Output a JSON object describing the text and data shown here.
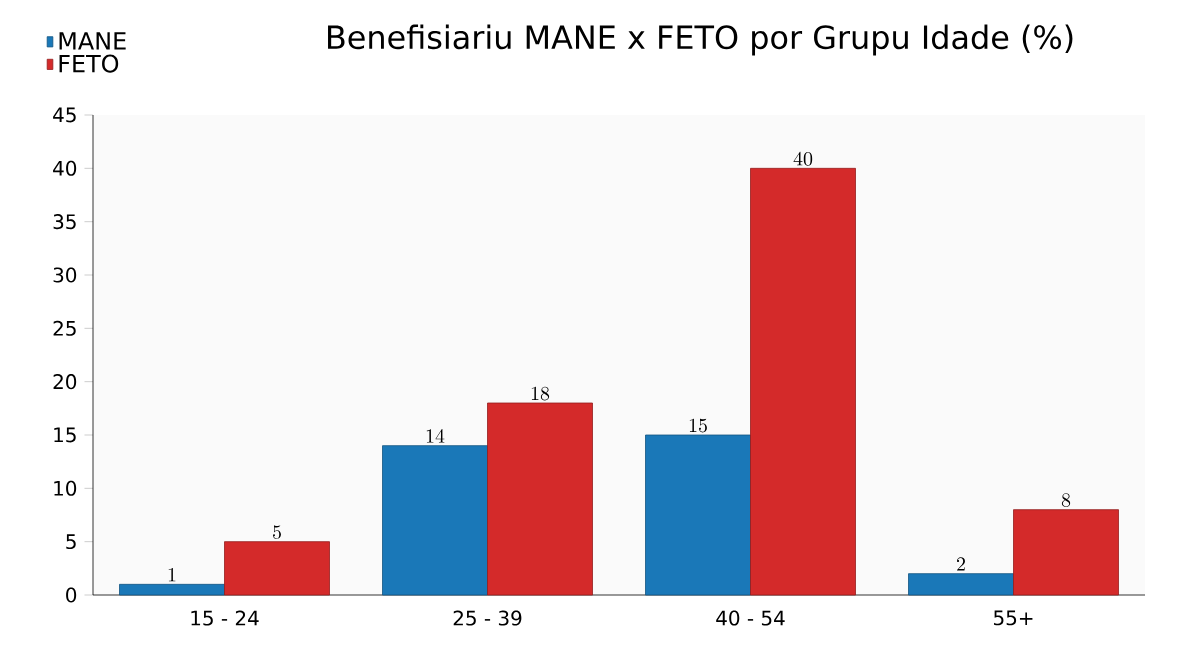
{
  "chart_data": {
    "type": "bar",
    "title": "Benefisiariu MANE x FETO por Grupu Idade (%)",
    "categories": [
      "15 - 24",
      "25 - 39",
      "40 - 54",
      "55+"
    ],
    "series": [
      {
        "name": "MANE",
        "color": "#1a78b8",
        "values": [
          1,
          14,
          15,
          2
        ]
      },
      {
        "name": "FETO",
        "color": "#d42a2a",
        "values": [
          5,
          18,
          40,
          8
        ]
      }
    ],
    "ylim": [
      0,
      45
    ],
    "yticks": [
      0,
      5,
      10,
      15,
      20,
      25,
      30,
      35,
      40,
      45
    ],
    "data_labels": true,
    "legend": "top left"
  }
}
